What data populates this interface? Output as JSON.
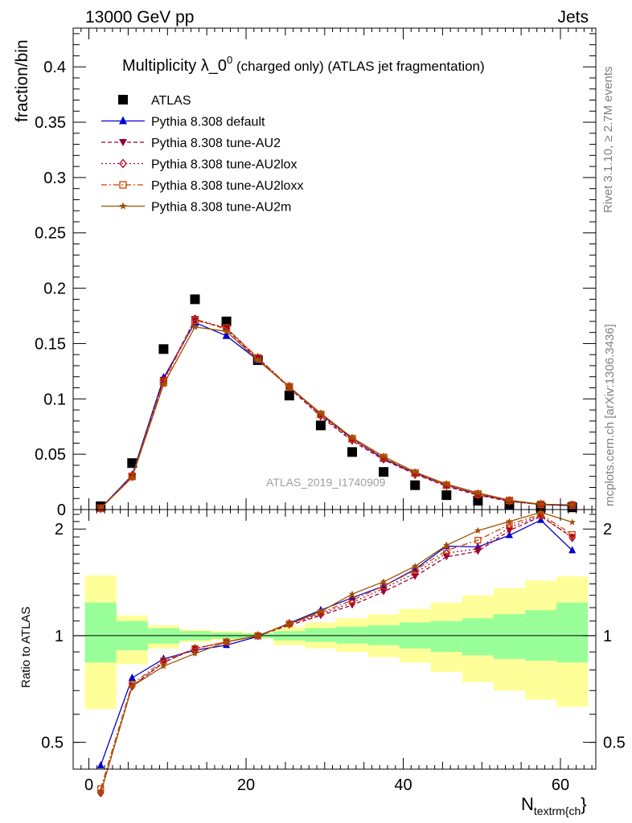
{
  "header": {
    "energy": "13000 GeV pp",
    "category": "Jets"
  },
  "side": {
    "rivet": "Rivet 3.1.10, ≥ 2.7M events",
    "mcplots": "mcplots.cern.ch [arXiv:1306.3436]"
  },
  "colors": {
    "atlas": "#000000",
    "default": "#0000cc",
    "au2": "#990033",
    "au2lox": "#b2002b",
    "au2loxx": "#cc4400",
    "au2m": "#a05000",
    "band_inner": "#99ff99",
    "band_outer": "#ffff99"
  },
  "chart_data": [
    {
      "type": "scatter",
      "title_main": "Multiplicity λ_0",
      "title_sup": "0",
      "title_rest": " (charged only) (ATLAS jet fragmentation)",
      "ylabel": "fraction/bin",
      "watermark": "ATLAS_2019_I1740909",
      "xlim": [
        -2,
        64.5
      ],
      "ylim": [
        0,
        0.435
      ],
      "yticks": [
        0,
        0.05,
        0.1,
        0.15,
        0.2,
        0.25,
        0.3,
        0.35,
        0.4
      ],
      "ytick_labels": [
        "0",
        "0.05",
        "0.1",
        "0.15",
        "0.2",
        "0.25",
        "0.3",
        "0.35",
        "0.4"
      ],
      "legend_position": "top-left",
      "x": [
        1.5,
        5.5,
        9.5,
        13.5,
        17.5,
        21.5,
        25.5,
        29.5,
        33.5,
        37.5,
        41.5,
        45.5,
        49.5,
        53.5,
        57.5,
        61.5
      ],
      "series": [
        {
          "key": "atlas",
          "name": "ATLAS",
          "marker": "square",
          "style": "none",
          "values": [
            0.003,
            0.042,
            0.145,
            0.19,
            0.17,
            0.135,
            0.103,
            0.076,
            0.052,
            0.034,
            0.022,
            0.013,
            0.008,
            0.004,
            0.002,
            0.002
          ]
        },
        {
          "key": "default",
          "name": "Pythia 8.308 default",
          "marker": "triangle-up",
          "style": "solid",
          "values": [
            0.0012,
            0.031,
            0.119,
            0.169,
            0.157,
            0.135,
            0.111,
            0.086,
            0.064,
            0.046,
            0.033,
            0.022,
            0.014,
            0.008,
            0.0045,
            0.0035
          ]
        },
        {
          "key": "au2",
          "name": "Pythia 8.308 tune-AU2",
          "marker": "triangle-down",
          "style": "dashed",
          "values": [
            0.0011,
            0.03,
            0.117,
            0.172,
            0.163,
            0.136,
            0.11,
            0.084,
            0.062,
            0.045,
            0.032,
            0.021,
            0.013,
            0.0074,
            0.0045,
            0.004
          ]
        },
        {
          "key": "au2lox",
          "name": "Pythia 8.308 tune-AU2lox",
          "marker": "diamond-open",
          "style": "dotted",
          "values": [
            0.0011,
            0.03,
            0.116,
            0.172,
            0.164,
            0.137,
            0.111,
            0.085,
            0.063,
            0.046,
            0.032,
            0.022,
            0.0135,
            0.0078,
            0.0046,
            0.004
          ]
        },
        {
          "key": "au2loxx",
          "name": "Pythia 8.308 tune-AU2loxx",
          "marker": "square-open",
          "style": "dashdot",
          "values": [
            0.0011,
            0.03,
            0.115,
            0.171,
            0.164,
            0.137,
            0.111,
            0.086,
            0.064,
            0.047,
            0.033,
            0.022,
            0.014,
            0.0082,
            0.0047,
            0.004
          ]
        },
        {
          "key": "au2m",
          "name": "Pythia 8.308 tune-AU2m",
          "marker": "star",
          "style": "solid",
          "values": [
            0.0011,
            0.029,
            0.113,
            0.165,
            0.161,
            0.135,
            0.111,
            0.087,
            0.065,
            0.048,
            0.034,
            0.023,
            0.015,
            0.0085,
            0.0048,
            0.0043
          ]
        }
      ]
    },
    {
      "type": "line",
      "ylabel": "Ratio to ATLAS",
      "xlabel": "N",
      "xlabel_sub": "textrm{ch",
      "xlabel_tail": "}",
      "xlim": [
        -2,
        64.5
      ],
      "ylim": [
        0.42,
        2.27
      ],
      "ytick_labels_major": [
        "0.5",
        "1",
        "2"
      ],
      "yticks_major": [
        0.5,
        1,
        2
      ],
      "xticks": [
        0,
        20,
        40,
        60
      ],
      "xtick_labels": [
        "0",
        "20",
        "40",
        "60"
      ],
      "reference_line": 1,
      "x": [
        1.5,
        5.5,
        9.5,
        13.5,
        17.5,
        21.5,
        25.5,
        29.5,
        33.5,
        37.5,
        41.5,
        45.5,
        49.5,
        53.5,
        57.5,
        61.5
      ],
      "band_edges": [
        -0.5,
        3.5,
        7.5,
        11.5,
        15.5,
        19.5,
        23.5,
        27.5,
        31.5,
        35.5,
        39.5,
        43.5,
        47.5,
        51.5,
        55.5,
        59.5,
        63.5
      ],
      "band_inner": [
        [
          0.84,
          1.24
        ],
        [
          0.91,
          1.1
        ],
        [
          0.95,
          1.05
        ],
        [
          0.97,
          1.03
        ],
        [
          0.98,
          1.02
        ],
        [
          0.985,
          1.015
        ],
        [
          0.97,
          1.03
        ],
        [
          0.96,
          1.05
        ],
        [
          0.95,
          1.06
        ],
        [
          0.94,
          1.07
        ],
        [
          0.92,
          1.09
        ],
        [
          0.9,
          1.1
        ],
        [
          0.88,
          1.12
        ],
        [
          0.86,
          1.15
        ],
        [
          0.85,
          1.18
        ],
        [
          0.84,
          1.24
        ]
      ],
      "band_outer": [
        [
          0.62,
          1.48
        ],
        [
          0.83,
          1.14
        ],
        [
          0.92,
          1.07
        ],
        [
          0.96,
          1.04
        ],
        [
          0.97,
          1.03
        ],
        [
          0.98,
          1.02
        ],
        [
          0.94,
          1.06
        ],
        [
          0.92,
          1.09
        ],
        [
          0.9,
          1.12
        ],
        [
          0.87,
          1.15
        ],
        [
          0.84,
          1.19
        ],
        [
          0.79,
          1.24
        ],
        [
          0.74,
          1.3
        ],
        [
          0.7,
          1.36
        ],
        [
          0.66,
          1.43
        ],
        [
          0.63,
          1.47
        ]
      ],
      "series": [
        {
          "key": "default",
          "values": [
            0.43,
            0.76,
            0.86,
            0.91,
            0.94,
            0.995,
            1.085,
            1.18,
            1.28,
            1.38,
            1.54,
            1.79,
            1.78,
            1.92,
            2.12,
            1.74
          ]
        },
        {
          "key": "au2",
          "values": [
            0.36,
            0.72,
            0.84,
            0.92,
            0.96,
            1.0,
            1.07,
            1.14,
            1.22,
            1.33,
            1.47,
            1.67,
            1.73,
            1.98,
            2.17,
            1.9
          ]
        },
        {
          "key": "au2lox",
          "values": [
            0.36,
            0.72,
            0.84,
            0.92,
            0.96,
            1.0,
            1.08,
            1.15,
            1.24,
            1.36,
            1.5,
            1.71,
            1.76,
            2.02,
            2.18,
            1.89
          ]
        },
        {
          "key": "au2loxx",
          "values": [
            0.37,
            0.73,
            0.85,
            0.92,
            0.96,
            1.0,
            1.08,
            1.16,
            1.26,
            1.38,
            1.53,
            1.74,
            1.86,
            2.06,
            2.2,
            1.93
          ]
        },
        {
          "key": "au2m",
          "values": [
            0.36,
            0.72,
            0.82,
            0.89,
            0.96,
            1.0,
            1.08,
            1.17,
            1.31,
            1.42,
            1.57,
            1.8,
            1.98,
            2.1,
            2.23,
            2.09
          ]
        }
      ]
    }
  ]
}
